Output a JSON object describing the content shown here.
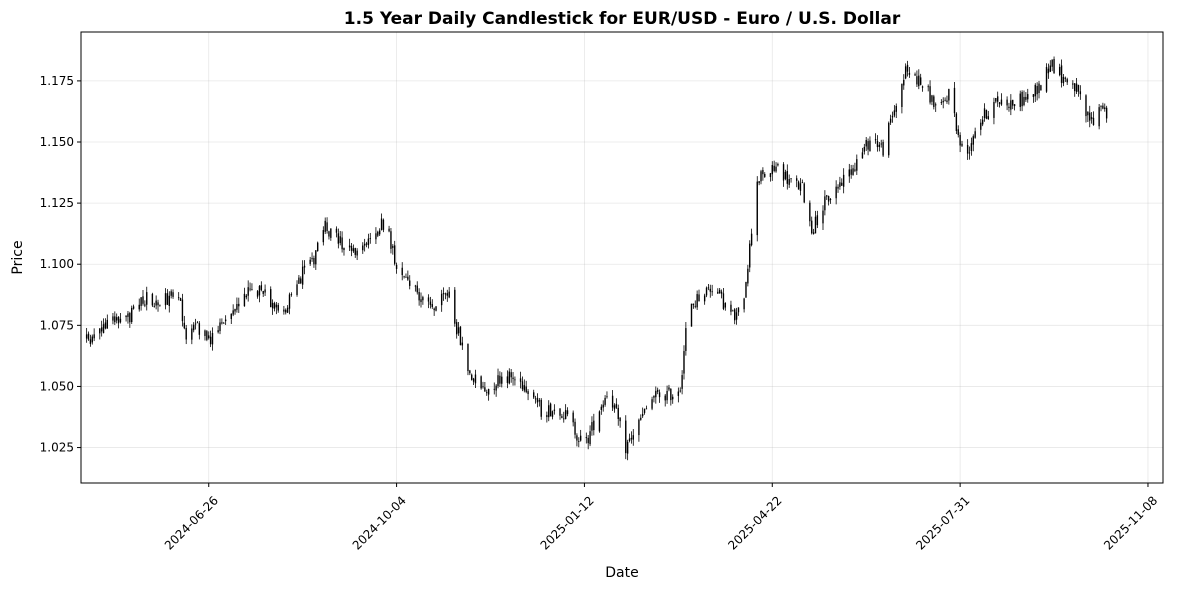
{
  "chart_data": {
    "type": "candlestick",
    "title": "1.5 Year Daily Candlestick for EUR/USD - Euro / U.S. Dollar",
    "xlabel": "Date",
    "ylabel": "Price",
    "ylim": [
      1.0105,
      1.195
    ],
    "xlim": [
      "2024-04-19",
      "2025-11-16"
    ],
    "grid": true,
    "legend": "none",
    "colors": {
      "candle": "#000000",
      "grid": "#b0b0b0",
      "background": "#ffffff"
    },
    "y_ticks": [
      1.025,
      1.05,
      1.075,
      1.1,
      1.125,
      1.15,
      1.175
    ],
    "y_tick_labels": [
      "1.025",
      "1.050",
      "1.075",
      "1.100",
      "1.125",
      "1.150",
      "1.175"
    ],
    "x_ticks": [
      "2024-06-26",
      "2024-10-04",
      "2025-01-12",
      "2025-04-22",
      "2025-07-31",
      "2025-11-08"
    ],
    "x_tick_labels": [
      "2024-06-26",
      "2024-10-04",
      "2025-01-12",
      "2025-04-22",
      "2025-07-31",
      "2025-11-08"
    ],
    "period": {
      "start": "2024-04-22",
      "end": "2025-10-17"
    },
    "close_path": [
      [
        "2024-04-22",
        1.069
      ],
      [
        "2024-05-05",
        1.076
      ],
      [
        "2024-05-15",
        1.079
      ],
      [
        "2024-05-22",
        1.086
      ],
      [
        "2024-06-01",
        1.085
      ],
      [
        "2024-06-10",
        1.088
      ],
      [
        "2024-06-14",
        1.071
      ],
      [
        "2024-06-20",
        1.074
      ],
      [
        "2024-06-26",
        1.068
      ],
      [
        "2024-07-03",
        1.076
      ],
      [
        "2024-07-10",
        1.082
      ],
      [
        "2024-07-18",
        1.09
      ],
      [
        "2024-07-26",
        1.087
      ],
      [
        "2024-08-05",
        1.08
      ],
      [
        "2024-08-10",
        1.092
      ],
      [
        "2024-08-20",
        1.1
      ],
      [
        "2024-08-26",
        1.116
      ],
      [
        "2024-09-02",
        1.11
      ],
      [
        "2024-09-07",
        1.108
      ],
      [
        "2024-09-14",
        1.106
      ],
      [
        "2024-09-20",
        1.112
      ],
      [
        "2024-09-28",
        1.117
      ],
      [
        "2024-10-04",
        1.1
      ],
      [
        "2024-10-12",
        1.093
      ],
      [
        "2024-10-20",
        1.082
      ],
      [
        "2024-10-26",
        1.083
      ],
      [
        "2024-11-01",
        1.089
      ],
      [
        "2024-11-05",
        1.074
      ],
      [
        "2024-11-12",
        1.055
      ],
      [
        "2024-11-20",
        1.048
      ],
      [
        "2024-11-30",
        1.055
      ],
      [
        "2024-12-08",
        1.052
      ],
      [
        "2024-12-15",
        1.049
      ],
      [
        "2024-12-20",
        1.04
      ],
      [
        "2024-12-30",
        1.041
      ],
      [
        "2025-01-05",
        1.035
      ],
      [
        "2025-01-12",
        1.025
      ],
      [
        "2025-01-20",
        1.041
      ],
      [
        "2025-01-25",
        1.049
      ],
      [
        "2025-02-03",
        1.025
      ],
      [
        "2025-02-10",
        1.035
      ],
      [
        "2025-02-18",
        1.046
      ],
      [
        "2025-02-28",
        1.047
      ],
      [
        "2025-03-04",
        1.05
      ],
      [
        "2025-03-08",
        1.08
      ],
      [
        "2025-03-15",
        1.088
      ],
      [
        "2025-03-22",
        1.091
      ],
      [
        "2025-03-28",
        1.083
      ],
      [
        "2025-04-02",
        1.078
      ],
      [
        "2025-04-06",
        1.082
      ],
      [
        "2025-04-10",
        1.107
      ],
      [
        "2025-04-14",
        1.135
      ],
      [
        "2025-04-20",
        1.137
      ],
      [
        "2025-04-25",
        1.14
      ],
      [
        "2025-05-01",
        1.134
      ],
      [
        "2025-05-08",
        1.131
      ],
      [
        "2025-05-13",
        1.114
      ],
      [
        "2025-05-20",
        1.125
      ],
      [
        "2025-05-28",
        1.133
      ],
      [
        "2025-06-05",
        1.141
      ],
      [
        "2025-06-14",
        1.152
      ],
      [
        "2025-06-20",
        1.147
      ],
      [
        "2025-06-27",
        1.166
      ],
      [
        "2025-07-02",
        1.179
      ],
      [
        "2025-07-08",
        1.176
      ],
      [
        "2025-07-14",
        1.17
      ],
      [
        "2025-07-20",
        1.162
      ],
      [
        "2025-07-26",
        1.172
      ],
      [
        "2025-07-30",
        1.152
      ],
      [
        "2025-08-03",
        1.143
      ],
      [
        "2025-08-08",
        1.156
      ],
      [
        "2025-08-14",
        1.162
      ],
      [
        "2025-08-20",
        1.167
      ],
      [
        "2025-08-28",
        1.166
      ],
      [
        "2025-09-05",
        1.168
      ],
      [
        "2025-09-12",
        1.173
      ],
      [
        "2025-09-17",
        1.183
      ],
      [
        "2025-09-23",
        1.177
      ],
      [
        "2025-09-30",
        1.173
      ],
      [
        "2025-10-06",
        1.161
      ],
      [
        "2025-10-10",
        1.158
      ],
      [
        "2025-10-14",
        1.166
      ],
      [
        "2025-10-17",
        1.162
      ]
    ]
  }
}
